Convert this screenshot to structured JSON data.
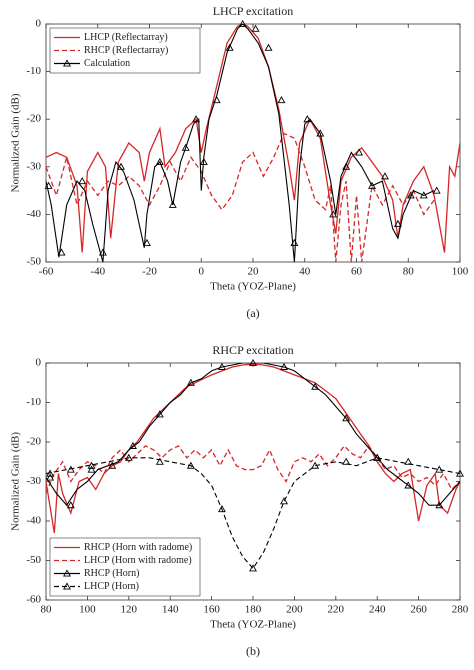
{
  "chart_data": [
    {
      "type": "line",
      "title": "LHCP excitation",
      "xlabel": "Theta (YOZ-Plane)",
      "ylabel": "Normalized Gain (dB)",
      "caption": "(a)",
      "xlim": [
        -60,
        100
      ],
      "ylim": [
        -50,
        0
      ],
      "xticks": [
        -60,
        -40,
        -20,
        0,
        20,
        40,
        60,
        80,
        100
      ],
      "yticks": [
        0,
        -10,
        -20,
        -30,
        -40,
        -50
      ],
      "legend": "upper left",
      "series": [
        {
          "name": "LHCP (Reflectarray)",
          "color": "#d62728",
          "dash": false,
          "x": [
            -60,
            -56,
            -52,
            -48,
            -46,
            -44,
            -40,
            -37,
            -35,
            -32,
            -28,
            -24,
            -22,
            -20,
            -16,
            -14,
            -10,
            -6,
            -2,
            0,
            2,
            6,
            10,
            14,
            16,
            18,
            22,
            26,
            30,
            34,
            36,
            38,
            42,
            46,
            50,
            52,
            54,
            58,
            62,
            66,
            70,
            74,
            76,
            78,
            82,
            86,
            90,
            94,
            96,
            98,
            100
          ],
          "values": [
            -28,
            -27,
            -28,
            -34,
            -48,
            -31,
            -27,
            -30,
            -45,
            -29,
            -25,
            -27,
            -33,
            -27,
            -22,
            -30,
            -27,
            -22,
            -20,
            -27,
            -22,
            -13,
            -4,
            -0.5,
            0,
            -0.5,
            -3,
            -9,
            -18,
            -30,
            -37,
            -25,
            -20,
            -24,
            -38,
            -44,
            -33,
            -28,
            -26,
            -29,
            -32,
            -37,
            -45,
            -38,
            -33,
            -30,
            -36,
            -48,
            -30,
            -32,
            -25
          ]
        },
        {
          "name": "RHCP (Reflectarray)",
          "color": "#d62728",
          "dash": true,
          "x": [
            -60,
            -56,
            -52,
            -48,
            -44,
            -40,
            -36,
            -32,
            -28,
            -24,
            -20,
            -16,
            -12,
            -8,
            -4,
            0,
            4,
            8,
            12,
            16,
            20,
            24,
            28,
            32,
            36,
            40,
            44,
            48,
            50,
            52,
            54,
            56,
            58,
            60,
            62,
            66,
            70,
            74,
            78,
            82,
            86,
            90
          ],
          "values": [
            -30,
            -36,
            -28,
            -38,
            -33,
            -36,
            -33,
            -34,
            -32,
            -34,
            -38,
            -34,
            -29,
            -33,
            -28,
            -31,
            -36,
            -39,
            -36,
            -29,
            -27,
            -32,
            -28,
            -23,
            -24,
            -30,
            -37,
            -39,
            -34,
            -50,
            -38,
            -33,
            -50,
            -36,
            -50,
            -34,
            -38,
            -34,
            -38,
            -35,
            -40,
            -37
          ]
        },
        {
          "name": "Calculation",
          "color": "#000000",
          "dash": false,
          "x": [
            -60,
            -58,
            -55,
            -52,
            -48,
            -45,
            -42,
            -38,
            -36,
            -33,
            -30,
            -26,
            -22,
            -21,
            -18,
            -16,
            -13,
            -11,
            -8,
            -6,
            -3,
            -1,
            0,
            1,
            3,
            6,
            10,
            14,
            16,
            18,
            22,
            26,
            30,
            34,
            36,
            38,
            40,
            42,
            46,
            50,
            52,
            54,
            58,
            62,
            66,
            70,
            74,
            76,
            78,
            82,
            86,
            90
          ],
          "values": [
            -33,
            -38,
            -49,
            -38,
            -33,
            -35,
            -42,
            -50,
            -35,
            -29,
            -31,
            -37,
            -47,
            -40,
            -30,
            -29,
            -33,
            -38,
            -29,
            -26,
            -21,
            -20,
            -35,
            -28,
            -20,
            -15,
            -6,
            -1,
            0,
            -1,
            -4,
            -9,
            -19,
            -38,
            -50,
            -30,
            -21,
            -20,
            -23,
            -33,
            -40,
            -32,
            -27,
            -30,
            -34,
            -33,
            -43,
            -45,
            -40,
            -35,
            -36,
            -35
          ],
          "markers": {
            "x": [
              -59,
              -54,
              -46,
              -38,
              -31,
              -21,
              -16,
              -11,
              -6,
              -2,
              1,
              6,
              11,
              16,
              21,
              26,
              31,
              36,
              41,
              46,
              51,
              56,
              61,
              66,
              71,
              76,
              81,
              86,
              91
            ],
            "values": [
              -34,
              -48,
              -33,
              -48,
              -30,
              -46,
              -29,
              -38,
              -26,
              -20,
              -29,
              -16,
              -5,
              0,
              -1,
              -5,
              -16,
              -46,
              -20,
              -23,
              -40,
              -30,
              -27,
              -34,
              -32,
              -42,
              -36,
              -36,
              -35
            ]
          }
        }
      ]
    },
    {
      "type": "line",
      "title": "RHCP excitation",
      "xlabel": "Theta (YOZ-Plane)",
      "ylabel": "Normalized Gain (dB)",
      "caption": "(b)",
      "xlim": [
        80,
        280
      ],
      "ylim": [
        -60,
        0
      ],
      "xticks": [
        80,
        100,
        120,
        140,
        160,
        180,
        200,
        220,
        240,
        260,
        280
      ],
      "yticks": [
        0,
        -10,
        -20,
        -30,
        -40,
        -50,
        -60
      ],
      "legend": "lower left",
      "series": [
        {
          "name": "RHCP (Horn with radome)",
          "color": "#d62728",
          "dash": false,
          "x": [
            80,
            84,
            86,
            88,
            92,
            96,
            100,
            104,
            108,
            112,
            116,
            120,
            124,
            128,
            132,
            136,
            140,
            144,
            148,
            152,
            156,
            160,
            165,
            170,
            175,
            180,
            185,
            190,
            195,
            200,
            205,
            210,
            215,
            220,
            224,
            228,
            232,
            236,
            240,
            244,
            248,
            252,
            256,
            260,
            264,
            268,
            270,
            274,
            278,
            280
          ],
          "values": [
            -30,
            -43,
            -28,
            -33,
            -38,
            -30,
            -29,
            -32,
            -28,
            -26,
            -25,
            -22,
            -20,
            -17,
            -14,
            -12,
            -10,
            -8,
            -6,
            -5,
            -4,
            -3,
            -2,
            -1,
            -0.5,
            -0.3,
            -0.5,
            -1,
            -2,
            -3,
            -4,
            -5,
            -7,
            -9,
            -12,
            -15,
            -18,
            -21,
            -25,
            -28,
            -30,
            -28,
            -27,
            -40,
            -31,
            -28,
            -36,
            -38,
            -32,
            -30
          ]
        },
        {
          "name": "LHCP (Horn with radome)",
          "color": "#d62728",
          "dash": true,
          "x": [
            80,
            84,
            88,
            92,
            96,
            100,
            104,
            108,
            112,
            116,
            120,
            124,
            128,
            132,
            136,
            140,
            144,
            148,
            152,
            156,
            160,
            164,
            168,
            172,
            176,
            180,
            184,
            188,
            192,
            196,
            200,
            204,
            208,
            212,
            216,
            220,
            224,
            228,
            232,
            236,
            240,
            244,
            248,
            252,
            256,
            260,
            264,
            268,
            272,
            276,
            280
          ],
          "values": [
            -33,
            -28,
            -25,
            -30,
            -27,
            -25,
            -26,
            -28,
            -24,
            -22,
            -25,
            -23,
            -21,
            -22,
            -24,
            -22,
            -21,
            -24,
            -22,
            -24,
            -22,
            -26,
            -22,
            -26,
            -27,
            -27,
            -26,
            -22,
            -27,
            -30,
            -25,
            -24,
            -25,
            -23,
            -26,
            -24,
            -21,
            -23,
            -24,
            -21,
            -24,
            -27,
            -26,
            -29,
            -28,
            -30,
            -29,
            -31,
            -28,
            -32,
            -30
          ]
        },
        {
          "name": "RHCP (Horn)",
          "color": "#000000",
          "dash": false,
          "x": [
            80,
            85,
            90,
            95,
            100,
            105,
            110,
            115,
            120,
            125,
            130,
            135,
            140,
            145,
            150,
            155,
            160,
            165,
            170,
            175,
            180,
            185,
            190,
            195,
            200,
            205,
            210,
            215,
            220,
            225,
            230,
            235,
            240,
            245,
            250,
            255,
            260,
            265,
            270,
            275,
            280
          ],
          "values": [
            -29,
            -33,
            -36,
            -32,
            -30,
            -27,
            -26,
            -25,
            -22,
            -20,
            -16,
            -13,
            -10,
            -8,
            -5,
            -4,
            -2,
            -1,
            -0.5,
            0,
            0,
            0,
            -0.5,
            -1,
            -2,
            -4,
            -6,
            -8,
            -11,
            -14,
            -18,
            -21,
            -24,
            -27,
            -29,
            -31,
            -33,
            -36,
            -36,
            -33,
            -30
          ],
          "markers": {
            "x": [
              82,
              92,
              102,
              112,
              122,
              135,
              150,
              165,
              180,
              195,
              210,
              225,
              240,
              255,
              270
            ],
            "values": [
              -29,
              -36,
              -27,
              -26,
              -21,
              -13,
              -5,
              -1,
              0,
              -1,
              -6,
              -14,
              -24,
              -31,
              -36
            ]
          }
        },
        {
          "name": "LHCP (Horn)",
          "color": "#000000",
          "dash": true,
          "x": [
            80,
            90,
            100,
            110,
            120,
            130,
            140,
            150,
            155,
            160,
            165,
            170,
            175,
            180,
            185,
            190,
            195,
            200,
            210,
            220,
            230,
            240,
            250,
            260,
            270,
            280
          ],
          "values": [
            -28,
            -27,
            -26,
            -25,
            -24,
            -24,
            -25,
            -26,
            -28,
            -31,
            -37,
            -44,
            -49,
            -52,
            -48,
            -42,
            -35,
            -30,
            -26,
            -25,
            -26,
            -24,
            -25,
            -26,
            -27,
            -28
          ],
          "markers": {
            "x": [
              82,
              92,
              102,
              120,
              135,
              150,
              165,
              180,
              195,
              210,
              225,
              240,
              255,
              270,
              280
            ],
            "values": [
              -28,
              -27,
              -26,
              -24,
              -25,
              -26,
              -37,
              -52,
              -35,
              -26,
              -25,
              -24,
              -25,
              -27,
              -28
            ]
          }
        }
      ]
    }
  ]
}
